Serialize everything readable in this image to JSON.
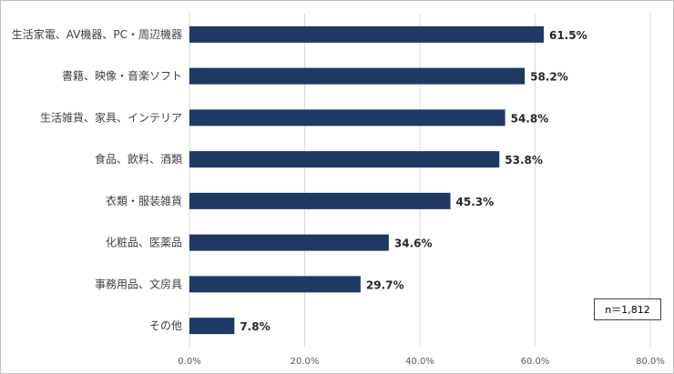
{
  "chart_data": {
    "type": "bar",
    "orientation": "horizontal",
    "categories": [
      "生活家電、AV機器、PC・周辺機器",
      "書籍、映像・音楽ソフト",
      "生活雑貨、家具、インテリア",
      "食品、飲料、酒類",
      "衣類・服装雑貨",
      "化粧品、医薬品",
      "事務用品、文房具",
      "その他"
    ],
    "values": [
      61.5,
      58.2,
      54.8,
      53.8,
      45.3,
      34.6,
      29.7,
      7.8
    ],
    "data_labels": [
      "61.5%",
      "58.2%",
      "54.8%",
      "53.8%",
      "45.3%",
      "34.6%",
      "29.7%",
      "7.8%"
    ],
    "xlim": [
      0,
      80
    ],
    "x_ticks": [
      0,
      20,
      40,
      60,
      80
    ],
    "x_tick_labels": [
      "0.0%",
      "20.0%",
      "40.0%",
      "60.0%",
      "80.0%"
    ],
    "grid": "vertical",
    "bar_color": "#1f3864",
    "gridline_color": "#d9d9d9",
    "annotation": "n＝1,812"
  }
}
